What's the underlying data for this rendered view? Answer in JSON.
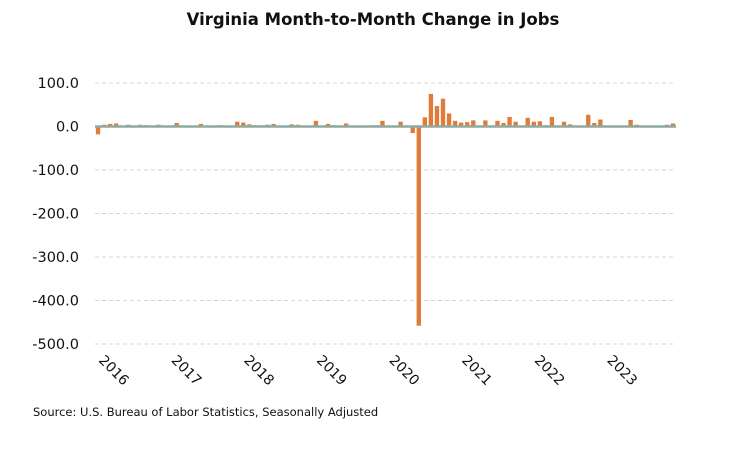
{
  "chart_data": {
    "type": "bar",
    "title": "Virginia Month-to-Month Change in Jobs",
    "source": "Source: U.S. Bureau of Labor Statistics, Seasonally Adjusted",
    "xlabel": "",
    "ylabel": "",
    "ylim": [
      -500,
      100
    ],
    "yticks": [
      100,
      0,
      -100,
      -200,
      -300,
      -400,
      -500
    ],
    "ytick_labels": [
      "100.0",
      "0.0",
      "-100.0",
      "-200.0",
      "-300.0",
      "-400.0",
      "-500.0"
    ],
    "xtick_labels": [
      "2016",
      "2017",
      "2018",
      "2019",
      "2020",
      "2021",
      "2022",
      "2023"
    ],
    "grid": true,
    "bar_color": "#e07b39",
    "zero_line_color": "#8ea9a3",
    "start_year": 2016,
    "series": [
      {
        "values": [
          -18,
          4,
          6,
          7,
          2,
          4,
          1,
          4,
          3,
          2,
          4,
          1,
          1,
          8,
          1,
          2,
          1,
          6,
          2,
          1,
          3,
          1,
          2,
          11,
          9,
          5,
          3,
          1,
          4,
          6,
          1,
          2,
          5,
          4,
          1,
          2,
          13,
          2,
          6,
          3,
          1,
          7,
          1,
          2,
          1,
          1,
          3,
          13,
          2,
          1,
          11,
          1,
          -15,
          -458,
          21,
          75,
          47,
          64,
          30,
          13,
          9,
          10,
          14,
          2,
          14,
          1,
          13,
          8,
          22,
          11,
          1,
          20,
          11,
          12,
          3,
          22,
          1,
          11,
          5,
          2,
          1,
          27,
          8,
          16,
          2,
          1,
          2,
          1,
          15,
          4,
          1,
          1,
          1,
          1,
          4,
          7
        ]
      }
    ]
  }
}
